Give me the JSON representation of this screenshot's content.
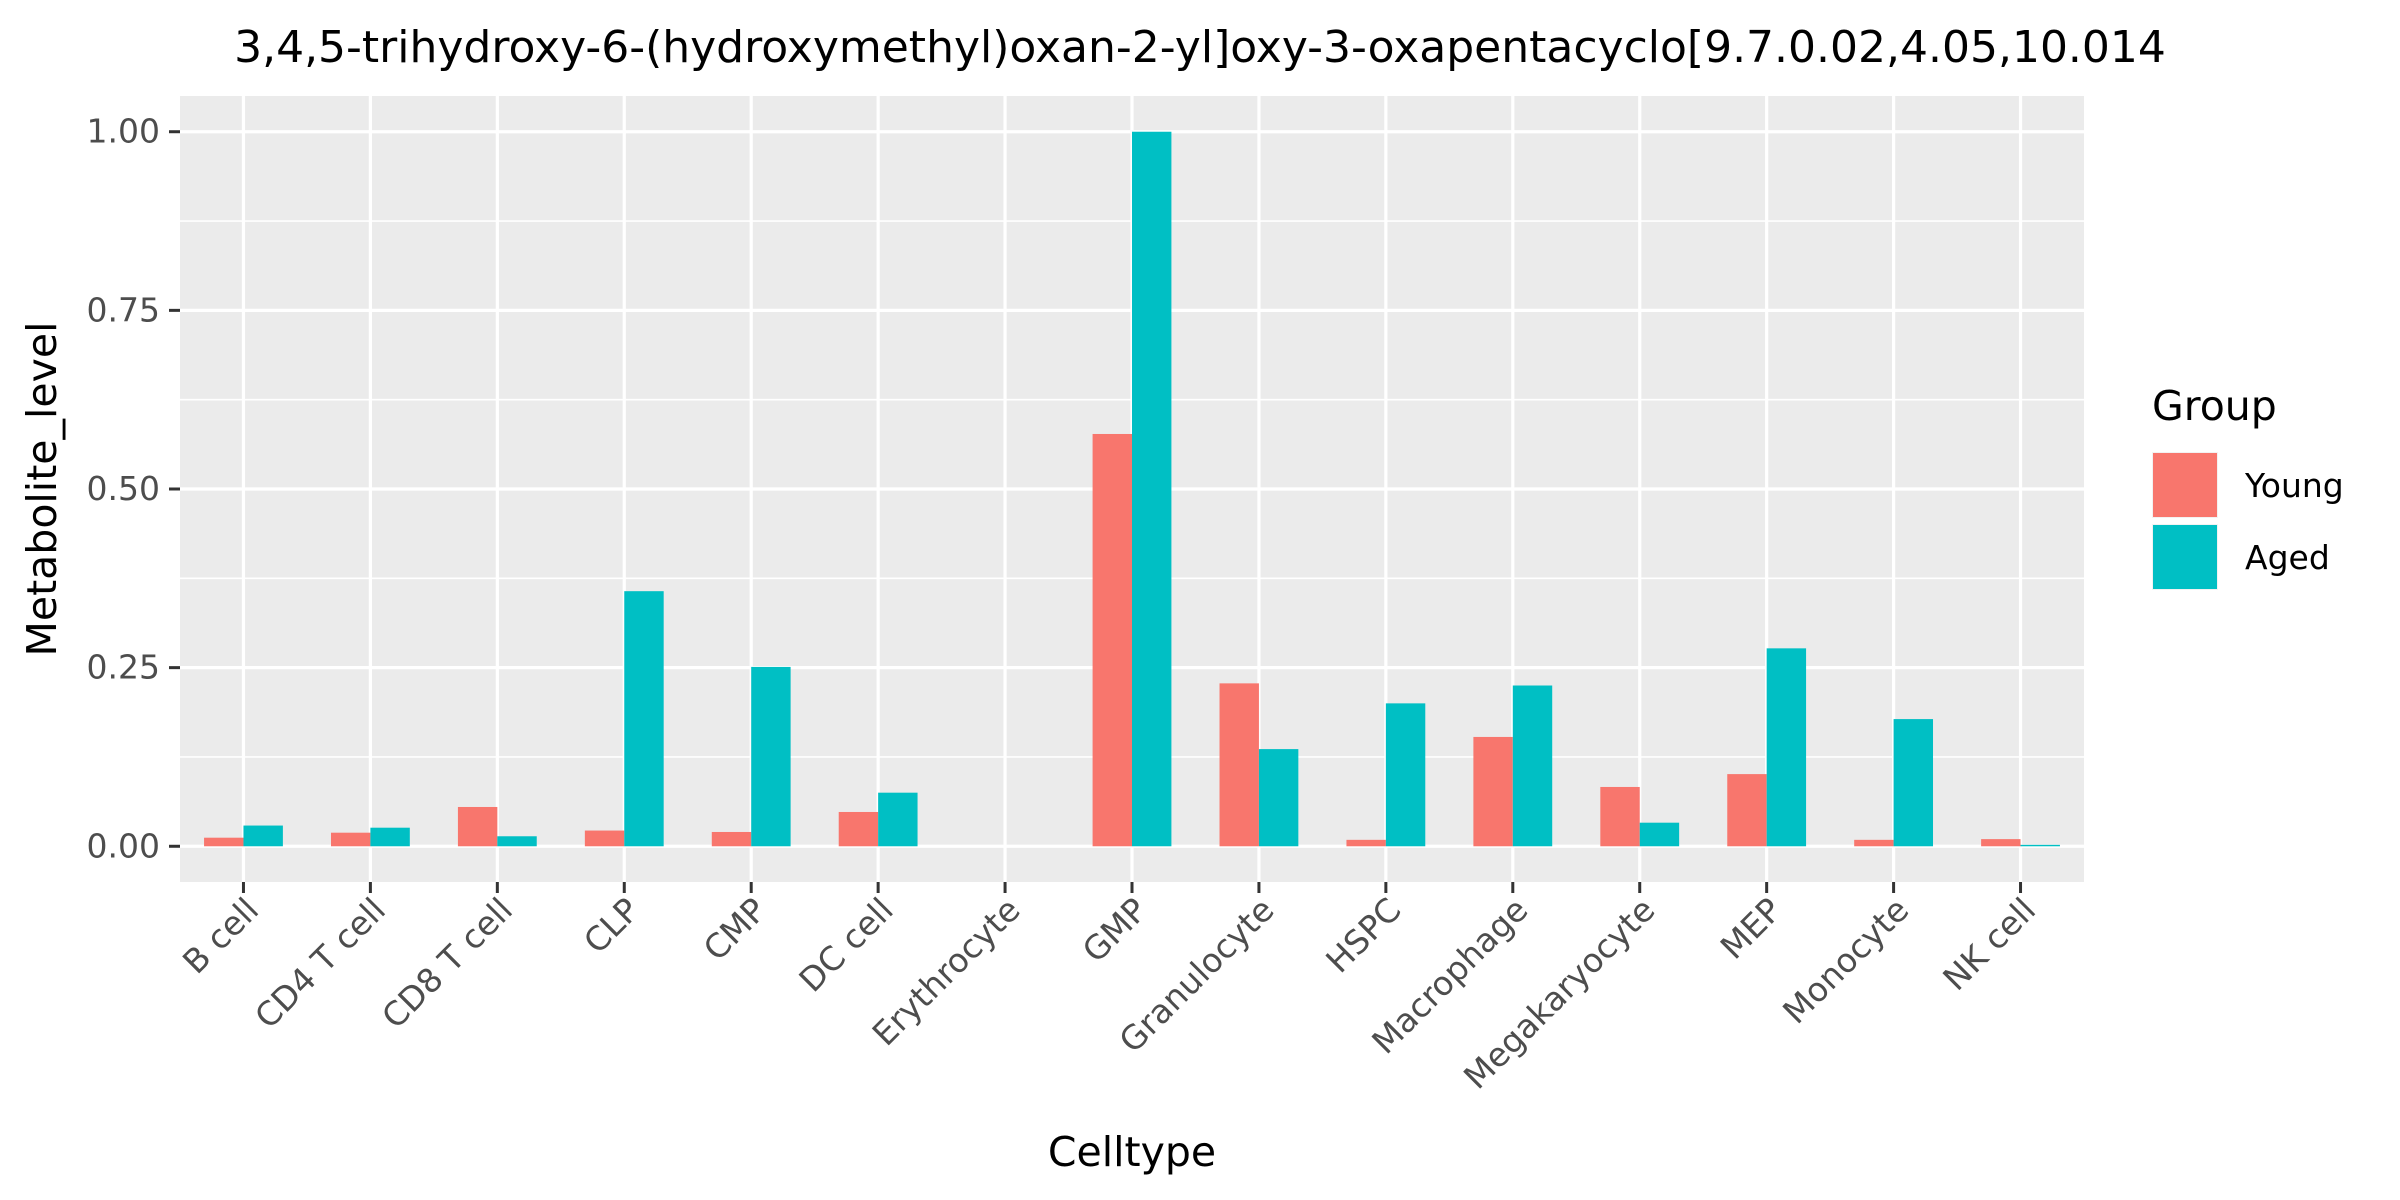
{
  "chart_data": {
    "type": "bar",
    "title": "3,4,5-trihydroxy-6-(hydroxymethyl)oxan-2-yl]oxy-3-oxapentacyclo[9.7.0.02,4.05,10.014",
    "xlabel": "Celltype",
    "ylabel": "Metabolite_level",
    "ylim": [
      -0.05,
      1.05
    ],
    "yticks": [
      0.0,
      0.25,
      0.5,
      0.75,
      1.0
    ],
    "ytick_labels": [
      "0.00",
      "0.25",
      "0.50",
      "0.75",
      "1.00"
    ],
    "grid": true,
    "legend": {
      "title": "Group",
      "position": "right"
    },
    "categories": [
      "B cell",
      "CD4 T cell",
      "CD8 T cell",
      "CLP",
      "CMP",
      "DC cell",
      "Erythrocyte",
      "GMP",
      "Granulocyte",
      "HSPC",
      "Macrophage",
      "Megakaryocyte",
      "MEP",
      "Monocyte",
      "NK cell"
    ],
    "series": [
      {
        "name": "Young",
        "color": "#F8766D",
        "values": [
          0.012,
          0.019,
          0.055,
          0.022,
          0.02,
          0.048,
          0.0,
          0.577,
          0.228,
          0.009,
          0.153,
          0.083,
          0.101,
          0.009,
          0.01
        ]
      },
      {
        "name": "Aged",
        "color": "#00BFC4",
        "values": [
          0.029,
          0.026,
          0.014,
          0.357,
          0.251,
          0.075,
          0.0,
          1.0,
          0.136,
          0.2,
          0.225,
          0.033,
          0.277,
          0.178,
          0.002
        ]
      }
    ]
  }
}
